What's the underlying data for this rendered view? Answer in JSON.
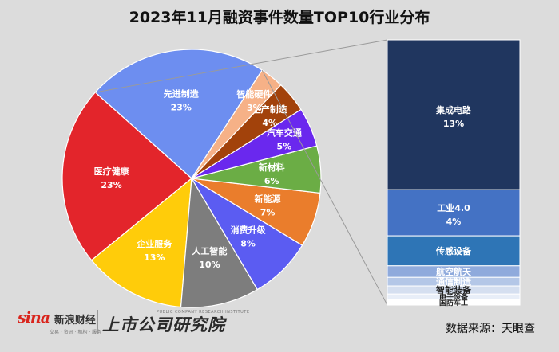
{
  "chart_data": {
    "type": "pie",
    "title": "2023年11月融资事件数量TOP10行业分布",
    "slices": [
      {
        "label": "先进制造",
        "percent_label": "23%",
        "value": 23,
        "color": "#6d8ef0"
      },
      {
        "label": "医疗健康",
        "percent_label": "23%",
        "value": 23,
        "color": "#e3252b"
      },
      {
        "label": "企业服务",
        "percent_label": "13%",
        "value": 13,
        "color": "#ffcc0a"
      },
      {
        "label": "人工智能",
        "percent_label": "10%",
        "value": 10,
        "color": "#7d7d7d"
      },
      {
        "label": "消费升级",
        "percent_label": "8%",
        "value": 8,
        "color": "#5b5cf2"
      },
      {
        "label": "新能源",
        "percent_label": "7%",
        "value": 7,
        "color": "#ea7d2c"
      },
      {
        "label": "新材料",
        "percent_label": "6%",
        "value": 6,
        "color": "#6bad45"
      },
      {
        "label": "汽车交通",
        "percent_label": "5%",
        "value": 5,
        "color": "#6a28ee"
      },
      {
        "label": "生产制造",
        "percent_label": "4%",
        "value": 4,
        "color": "#a2420b"
      },
      {
        "label": "智能硬件",
        "percent_label": "3%",
        "value": 3,
        "color": "#f6b187"
      }
    ],
    "breakdown_of": "先进制造",
    "breakdown": [
      {
        "label": "集成电路",
        "percent_label": "13%",
        "value": 13,
        "color": "#20365f"
      },
      {
        "label": "工业4.0",
        "percent_label": "4%",
        "value": 4,
        "color": "#4472c4"
      },
      {
        "label": "传感设备",
        "percent_label": "",
        "value": 2.6,
        "color": "#2e75b6"
      },
      {
        "label": "航空航天",
        "percent_label": "",
        "value": 1.0,
        "color": "#8faadc"
      },
      {
        "label": "通信制造",
        "percent_label": "",
        "value": 0.75,
        "color": "#b4c7e7"
      },
      {
        "label": "智能装备",
        "percent_label": "",
        "value": 0.7,
        "color": "#d5dff0"
      },
      {
        "label": "电子设备",
        "percent_label": "",
        "value": 0.5,
        "color": "#e8eef8"
      },
      {
        "label": "国防军工",
        "percent_label": "",
        "value": 0.45,
        "color": "#ffffff"
      }
    ]
  },
  "footer": {
    "brand_mark": "sina",
    "brand_name": "新浪财经",
    "brand_tagline": "交易 · 资讯 · 机构 · 服务",
    "institute_name": "上市公司研究院",
    "institute_en": "PUBLIC COMPANY RESEARCH INSTITUTE",
    "source": "数据来源：天眼查"
  }
}
